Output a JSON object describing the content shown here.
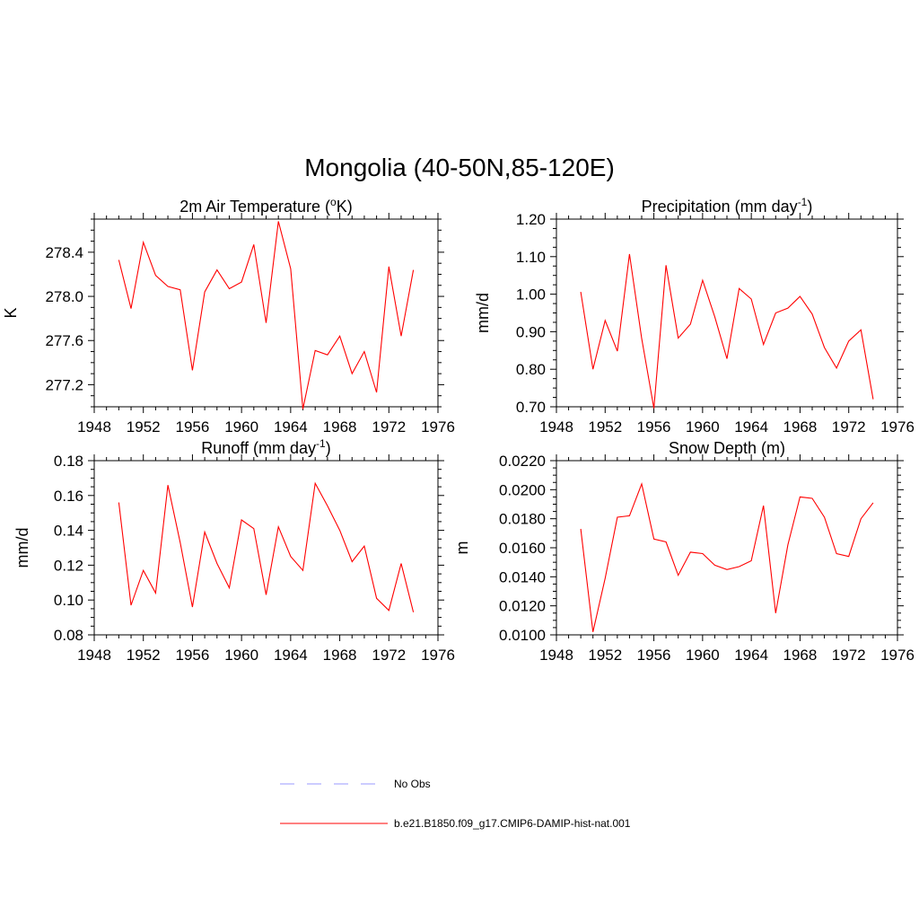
{
  "title": "Mongolia (40-50N,85-120E)",
  "colors": {
    "model_line": "#ff0000",
    "obs_line": "#9999ff",
    "axis": "#000000"
  },
  "legend": [
    {
      "label": "No Obs",
      "style": "dashed",
      "color": "#9999ff"
    },
    {
      "label": "b.e21.B1850.f09_g17.CMIP6-DAMIP-hist-nat.001",
      "style": "solid",
      "color": "#ff0000"
    }
  ],
  "chart_data": [
    {
      "type": "line",
      "title": "2m Air Temperature (",
      "title_sup": "o",
      "title_suffix": "K)",
      "ylabel": "K",
      "xlim": [
        1948,
        1976
      ],
      "ylim": [
        277.0,
        278.7
      ],
      "xticks": [
        "1948",
        "1952",
        "1956",
        "1960",
        "1964",
        "1968",
        "1972",
        "1976"
      ],
      "yticks": [
        "277.2",
        "277.6",
        "278.0",
        "278.4"
      ],
      "series": [
        {
          "x": [
            1950,
            1951,
            1952,
            1953,
            1954,
            1955,
            1956,
            1957,
            1958,
            1959,
            1960,
            1961,
            1962,
            1963,
            1964,
            1965,
            1966,
            1967,
            1968,
            1969,
            1970,
            1971,
            1972,
            1973,
            1974
          ],
          "values": [
            278.33,
            277.89,
            278.49,
            278.19,
            278.09,
            278.06,
            277.33,
            278.04,
            278.24,
            278.07,
            278.13,
            278.47,
            277.76,
            278.68,
            278.25,
            276.98,
            277.51,
            277.47,
            277.64,
            277.3,
            277.5,
            277.13,
            278.27,
            277.64,
            278.24
          ]
        }
      ]
    },
    {
      "type": "line",
      "title": "Precipitation (mm day",
      "title_sup": "-1",
      "title_suffix": ")",
      "ylabel": "mm/d",
      "xlim": [
        1948,
        1976
      ],
      "ylim": [
        0.7,
        1.2
      ],
      "xticks": [
        "1948",
        "1952",
        "1956",
        "1960",
        "1964",
        "1968",
        "1972",
        "1976"
      ],
      "yticks": [
        "0.70",
        "0.80",
        "0.90",
        "1.00",
        "1.10",
        "1.20"
      ],
      "series": [
        {
          "x": [
            1950,
            1951,
            1952,
            1953,
            1954,
            1955,
            1956,
            1957,
            1958,
            1959,
            1960,
            1961,
            1962,
            1963,
            1964,
            1965,
            1966,
            1967,
            1968,
            1969,
            1970,
            1971,
            1972,
            1973,
            1974
          ],
          "values": [
            1.006,
            0.8,
            0.93,
            0.848,
            1.107,
            0.882,
            0.696,
            1.077,
            0.883,
            0.92,
            1.037,
            0.94,
            0.828,
            1.015,
            0.987,
            0.866,
            0.95,
            0.963,
            0.994,
            0.947,
            0.858,
            0.803,
            0.875,
            0.905,
            0.72
          ]
        }
      ]
    },
    {
      "type": "line",
      "title": "Runoff (mm day",
      "title_sup": "-1",
      "title_suffix": ")",
      "ylabel": "mm/d",
      "xlim": [
        1948,
        1976
      ],
      "ylim": [
        0.08,
        0.18
      ],
      "xticks": [
        "1948",
        "1952",
        "1956",
        "1960",
        "1964",
        "1968",
        "1972",
        "1976"
      ],
      "yticks": [
        "0.08",
        "0.10",
        "0.12",
        "0.14",
        "0.16",
        "0.18"
      ],
      "series": [
        {
          "x": [
            1950,
            1951,
            1952,
            1953,
            1954,
            1955,
            1956,
            1957,
            1958,
            1959,
            1960,
            1961,
            1962,
            1963,
            1964,
            1965,
            1966,
            1967,
            1968,
            1969,
            1970,
            1971,
            1972,
            1973,
            1974
          ],
          "values": [
            0.156,
            0.097,
            0.117,
            0.104,
            0.166,
            0.133,
            0.096,
            0.139,
            0.121,
            0.107,
            0.146,
            0.141,
            0.103,
            0.142,
            0.125,
            0.117,
            0.167,
            0.154,
            0.14,
            0.122,
            0.131,
            0.101,
            0.094,
            0.121,
            0.093
          ]
        }
      ]
    },
    {
      "type": "line",
      "title": "Snow Depth (m)",
      "title_sup": "",
      "title_suffix": "",
      "ylabel": "m",
      "xlim": [
        1948,
        1976
      ],
      "ylim": [
        0.01,
        0.022
      ],
      "xticks": [
        "1948",
        "1952",
        "1956",
        "1960",
        "1964",
        "1968",
        "1972",
        "1976"
      ],
      "yticks": [
        "0.0100",
        "0.0120",
        "0.0140",
        "0.0160",
        "0.0180",
        "0.0200",
        "0.0220"
      ],
      "series": [
        {
          "x": [
            1950,
            1951,
            1952,
            1953,
            1954,
            1955,
            1956,
            1957,
            1958,
            1959,
            1960,
            1961,
            1962,
            1963,
            1964,
            1965,
            1966,
            1967,
            1968,
            1969,
            1970,
            1971,
            1972,
            1973,
            1974
          ],
          "values": [
            0.0173,
            0.0102,
            0.0139,
            0.0181,
            0.0182,
            0.0204,
            0.0166,
            0.0164,
            0.0141,
            0.0157,
            0.0156,
            0.0148,
            0.0145,
            0.0147,
            0.0151,
            0.0189,
            0.0115,
            0.0162,
            0.0195,
            0.0194,
            0.0181,
            0.0156,
            0.0154,
            0.018,
            0.0191
          ]
        }
      ]
    }
  ]
}
